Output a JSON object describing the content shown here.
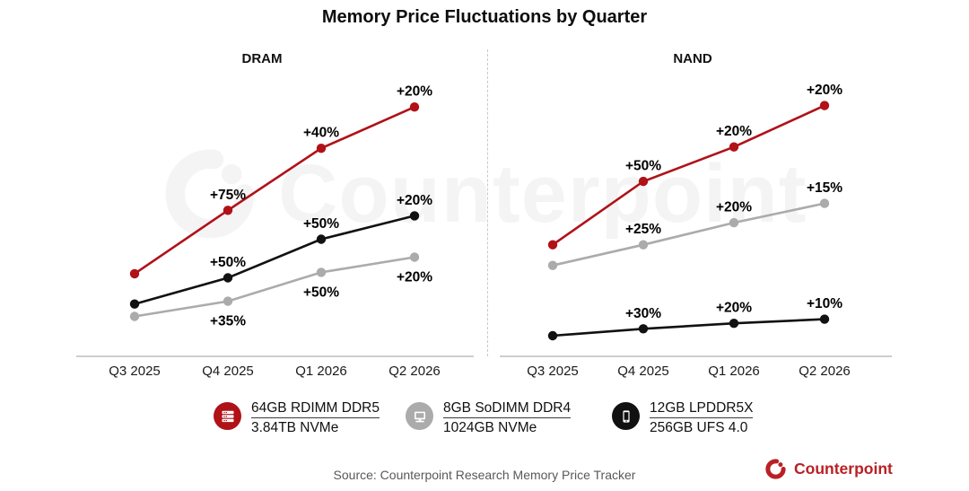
{
  "title": "Memory Price Fluctuations by Quarter",
  "watermark_text": "Counterpoint",
  "colors": {
    "red": "#b01218",
    "black": "#111111",
    "gray": "#ababab",
    "logo_red": "#b92025",
    "axis": "#bdbdbd",
    "tick_text": "#1a1a1a",
    "label_text": "#000000",
    "source_text": "#595959"
  },
  "chart_data": [
    {
      "type": "line",
      "panel": "DRAM",
      "categories": [
        "Q3 2025",
        "Q4 2025",
        "Q1 2026",
        "Q2 2026"
      ],
      "legend_position": "bottom",
      "grid": false,
      "series": [
        {
          "name": "64GB RDIMM DDR5",
          "color": "#b01218",
          "label_side": "above",
          "point_labels": [
            "",
            "+75%",
            "+40%",
            "+20%"
          ],
          "qoq_change_pct": [
            null,
            75,
            40,
            20
          ],
          "plot_levels": [
            30,
            53,
            75.5,
            90.5
          ]
        },
        {
          "name": "12GB LPDDR5X",
          "color": "#111111",
          "label_side": "above",
          "point_labels": [
            "",
            "+50%",
            "+50%",
            "+20%"
          ],
          "qoq_change_pct": [
            null,
            50,
            50,
            20
          ],
          "plot_levels": [
            19,
            28.5,
            42.5,
            51
          ]
        },
        {
          "name": "8GB SoDIMM DDR4",
          "color": "#ababab",
          "label_side": "below",
          "point_labels": [
            "",
            "+35%",
            "+50%",
            "+20%"
          ],
          "qoq_change_pct": [
            null,
            35,
            50,
            20
          ],
          "plot_levels": [
            14.5,
            20,
            30.5,
            36
          ]
        }
      ]
    },
    {
      "type": "line",
      "panel": "NAND",
      "categories": [
        "Q3 2025",
        "Q4 2025",
        "Q1 2026",
        "Q2 2026"
      ],
      "legend_position": "bottom",
      "grid": false,
      "series": [
        {
          "name": "3.84TB NVMe",
          "color": "#b01218",
          "label_side": "above",
          "point_labels": [
            "",
            "+50%",
            "+20%",
            "+20%"
          ],
          "qoq_change_pct": [
            null,
            50,
            20,
            20
          ],
          "plot_levels": [
            40.5,
            63.5,
            76,
            91
          ]
        },
        {
          "name": "1024GB NVMe",
          "color": "#ababab",
          "label_side": "above",
          "point_labels": [
            "",
            "+25%",
            "+20%",
            "+15%"
          ],
          "qoq_change_pct": [
            null,
            25,
            20,
            15
          ],
          "plot_levels": [
            33,
            40.5,
            48.5,
            55.5
          ]
        },
        {
          "name": "256GB UFS 4.0",
          "color": "#111111",
          "label_side": "above",
          "point_labels": [
            "",
            "+30%",
            "+20%",
            "+10%"
          ],
          "qoq_change_pct": [
            null,
            30,
            20,
            10
          ],
          "plot_levels": [
            7.5,
            10,
            12,
            13.5
          ]
        }
      ]
    }
  ],
  "legend": {
    "items": [
      {
        "icon": "server-icon",
        "color": "#b01218",
        "line1": "64GB RDIMM DDR5",
        "line2": "3.84TB NVMe"
      },
      {
        "icon": "laptop-icon",
        "color": "#ababab",
        "line1": "8GB SoDIMM DDR4",
        "line2": "1024GB NVMe"
      },
      {
        "icon": "phone-icon",
        "color": "#111111",
        "line1": "12GB LPDDR5X",
        "line2": "256GB UFS 4.0"
      }
    ]
  },
  "source": "Source: Counterpoint Research Memory Price Tracker",
  "logo": {
    "text": "Counterpoint"
  }
}
